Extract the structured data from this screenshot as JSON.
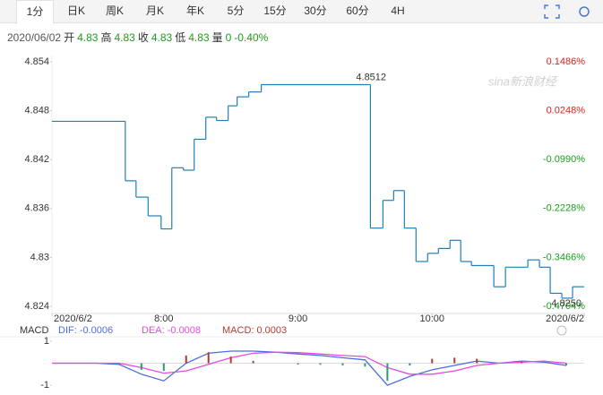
{
  "tabs": [
    "1分",
    "日K",
    "周K",
    "月K",
    "年K",
    "5分",
    "15分",
    "30分",
    "60分",
    "4H"
  ],
  "active_tab": 0,
  "info": {
    "date": "2020/06/02",
    "items": [
      {
        "label": "开",
        "value": "4.83"
      },
      {
        "label": "高",
        "value": "4.83"
      },
      {
        "label": "收",
        "value": "4.83"
      },
      {
        "label": "低",
        "value": "4.83"
      },
      {
        "label": "量",
        "value": "0"
      }
    ],
    "change": "-0.40%"
  },
  "watermark": "sina新浪财经",
  "chart_data": [
    {
      "type": "line",
      "step": true,
      "color": "#1f7fb8",
      "x": [
        430,
        462.8,
        467.6,
        473,
        478.8,
        483.6,
        488.8,
        493.6,
        498.8,
        503.6,
        508.8,
        512.8,
        518,
        523.6,
        571.6,
        572.4,
        578,
        582.8,
        587.6,
        592.8,
        598,
        602.8,
        608,
        612.8,
        617.6,
        627.6,
        632.8,
        642.8,
        648,
        652.8,
        658,
        662.8
      ],
      "values": [
        4.8467,
        4.8394,
        4.8374,
        4.8351,
        4.8335,
        4.841,
        4.8407,
        4.8445,
        4.8472,
        4.8468,
        4.8486,
        4.8497,
        4.8503,
        4.8512,
        4.8512,
        4.8336,
        4.837,
        4.8382,
        4.8336,
        4.8295,
        4.8305,
        4.8311,
        4.8321,
        4.8295,
        4.829,
        4.8264,
        4.8288,
        4.8297,
        4.8288,
        4.8256,
        4.825,
        4.8264
      ],
      "max_label": "4.8512",
      "min_label": "4.8250",
      "xlim": [
        430,
        668
      ],
      "xticks": [
        {
          "value": 430,
          "label": "2020/6/2"
        },
        {
          "value": 480,
          "label": "8:00"
        },
        {
          "value": 540,
          "label": "9:00"
        },
        {
          "value": 600,
          "label": "10:00"
        },
        {
          "value": 668,
          "label": "2020/6/2"
        }
      ],
      "ylim": [
        4.824,
        4.854
      ],
      "yticks": [
        4.854,
        4.848,
        4.842,
        4.836,
        4.83,
        4.824
      ],
      "y2lim": [
        -0.4704,
        0.1486
      ],
      "y2ticks": [
        {
          "value": 0.1486,
          "label": "0.1486%"
        },
        {
          "value": 0.0248,
          "label": "0.0248%"
        },
        {
          "value": -0.099,
          "label": "-0.0990%"
        },
        {
          "value": -0.2228,
          "label": "-0.2228%"
        },
        {
          "value": -0.3466,
          "label": "-0.3466%"
        },
        {
          "value": -0.4704,
          "label": "-0.4704%"
        }
      ],
      "up_color": "#e02020",
      "down_color": "#1a9e1a"
    },
    {
      "type": "macd",
      "title": "MACD",
      "x": [
        430,
        440,
        450,
        460,
        470,
        480,
        490,
        500,
        510,
        520,
        530,
        540,
        550,
        560,
        570,
        580,
        590,
        600,
        610,
        620,
        630,
        640,
        650,
        660
      ],
      "series": [
        {
          "name": "DIF: -0.0006",
          "color": "#4c6ee0",
          "kind": "line",
          "values": [
            0,
            0,
            0,
            -0.05,
            -0.5,
            -0.8,
            0,
            0.45,
            0.55,
            0.55,
            0.5,
            0.42,
            0.35,
            0.25,
            0.15,
            -1,
            -0.6,
            -0.3,
            -0.1,
            0.1,
            0,
            0.1,
            0.05,
            -0.1
          ]
        },
        {
          "name": "DEA: -0.0008",
          "color": "#e04ce0",
          "kind": "line",
          "values": [
            0,
            0,
            0,
            0,
            -0.2,
            -0.45,
            -0.35,
            -0.05,
            0.25,
            0.45,
            0.5,
            0.48,
            0.42,
            0.35,
            0.3,
            -0.2,
            -0.5,
            -0.5,
            -0.35,
            -0.1,
            0,
            0.05,
            0.1,
            0
          ]
        },
        {
          "name": "MACD: 0.0003",
          "color": "#b03a2e",
          "kind": "bar",
          "down_color": "#2a9d6a",
          "values": [
            0,
            0,
            0,
            -0.05,
            -0.3,
            -0.35,
            0.35,
            0.5,
            0.3,
            0.1,
            0,
            -0.06,
            -0.07,
            -0.1,
            -0.15,
            -0.8,
            -0.1,
            0.2,
            0.25,
            0.2,
            0,
            0.05,
            0,
            -0.1
          ]
        }
      ],
      "xlim": [
        430,
        668
      ],
      "ylim": [
        -1.3,
        1.2
      ],
      "yticks": [
        1,
        -1
      ]
    }
  ]
}
